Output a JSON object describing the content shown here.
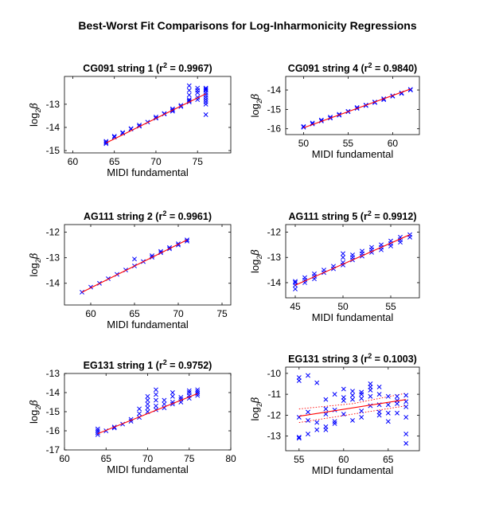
{
  "figure_title": "Best-Worst Fit Comparisons for Log-Inharmonicity Regressions",
  "colors": {
    "points": "#0000ff",
    "fit": "#ff0000",
    "ci": "#ff0000",
    "axes": "#000000"
  },
  "chart_data": [
    {
      "type": "scatter",
      "title_main": "CG091 string 1 (r",
      "title_sup": "2",
      "title_rest": " = 0.9967)",
      "xlabel": "MIDI fundamental",
      "ylabel_main": "log",
      "ylabel_sub": "2",
      "ylabel_sym": "β",
      "xlim": [
        59,
        79
      ],
      "ylim": [
        -15.1,
        -11.8
      ],
      "xticks": [
        60,
        65,
        70,
        75
      ],
      "yticks": [
        -15,
        -14,
        -13
      ],
      "marker": "x",
      "points": [
        [
          64,
          -14.65
        ],
        [
          64,
          -14.6
        ],
        [
          64,
          -14.7
        ],
        [
          65,
          -14.42
        ],
        [
          65,
          -14.38
        ],
        [
          66,
          -14.25
        ],
        [
          66,
          -14.22
        ],
        [
          67,
          -14.07
        ],
        [
          67,
          -14.05
        ],
        [
          68,
          -13.9
        ],
        [
          68,
          -13.95
        ],
        [
          69,
          -13.77
        ],
        [
          70,
          -13.6
        ],
        [
          70,
          -13.55
        ],
        [
          71,
          -13.42
        ],
        [
          71,
          -13.4
        ],
        [
          72,
          -13.3
        ],
        [
          72,
          -13.2
        ],
        [
          72,
          -13.25
        ],
        [
          73,
          -13.05
        ],
        [
          73,
          -13.1
        ],
        [
          74,
          -12.9
        ],
        [
          74,
          -12.8
        ],
        [
          74,
          -12.85
        ],
        [
          74,
          -12.2
        ],
        [
          74,
          -12.4
        ],
        [
          74,
          -12.6
        ],
        [
          75,
          -12.7
        ],
        [
          75,
          -12.5
        ],
        [
          75,
          -12.4
        ],
        [
          75,
          -12.3
        ],
        [
          75,
          -12.8
        ],
        [
          76,
          -12.3
        ],
        [
          76,
          -12.4
        ],
        [
          76,
          -12.5
        ],
        [
          76,
          -12.6
        ],
        [
          76,
          -12.7
        ],
        [
          76,
          -12.8
        ],
        [
          76,
          -12.9
        ],
        [
          76,
          -13.0
        ],
        [
          76,
          -12.35
        ],
        [
          76,
          -13.45
        ]
      ],
      "fit": {
        "x": [
          64,
          76
        ],
        "y": [
          -14.67,
          -12.55
        ]
      }
    },
    {
      "type": "scatter",
      "title_main": "CG091 string 4 (r",
      "title_sup": "2",
      "title_rest": " = 0.9840)",
      "xlabel": "MIDI fundamental",
      "ylabel_main": "log",
      "ylabel_sub": "2",
      "ylabel_sym": "β",
      "xlim": [
        48,
        63
      ],
      "ylim": [
        -16.3,
        -13.3
      ],
      "xticks": [
        50,
        55,
        60
      ],
      "yticks": [
        -16,
        -15,
        -14
      ],
      "marker": "x",
      "points": [
        [
          50,
          -15.92
        ],
        [
          50,
          -15.88
        ],
        [
          51,
          -15.75
        ],
        [
          51,
          -15.7
        ],
        [
          52,
          -15.6
        ],
        [
          52,
          -15.55
        ],
        [
          53,
          -15.45
        ],
        [
          53,
          -15.4
        ],
        [
          54,
          -15.3
        ],
        [
          54,
          -15.25
        ],
        [
          55,
          -15.12
        ],
        [
          55,
          -15.1
        ],
        [
          56,
          -14.95
        ],
        [
          56,
          -14.9
        ],
        [
          57,
          -14.8
        ],
        [
          57,
          -14.78
        ],
        [
          58,
          -14.62
        ],
        [
          58,
          -14.65
        ],
        [
          59,
          -14.5
        ],
        [
          59,
          -14.45
        ],
        [
          60,
          -14.32
        ],
        [
          60,
          -14.3
        ],
        [
          61,
          -14.15
        ],
        [
          61,
          -14.18
        ],
        [
          62,
          -14.0
        ],
        [
          62,
          -13.97
        ]
      ],
      "fit": {
        "x": [
          50,
          62
        ],
        "y": [
          -15.95,
          -13.95
        ]
      }
    },
    {
      "type": "scatter",
      "title_main": "AG111 string 2 (r",
      "title_sup": "2",
      "title_rest": " = 0.9961)",
      "xlabel": "MIDI fundamental",
      "ylabel_main": "log",
      "ylabel_sub": "2",
      "ylabel_sym": "β",
      "xlim": [
        57,
        76
      ],
      "ylim": [
        -14.85,
        -11.7
      ],
      "xticks": [
        60,
        65,
        70,
        75
      ],
      "yticks": [
        -14,
        -13,
        -12
      ],
      "marker": "x",
      "points": [
        [
          59,
          -14.35
        ],
        [
          60,
          -14.15
        ],
        [
          61,
          -14.0
        ],
        [
          62,
          -13.82
        ],
        [
          63,
          -13.65
        ],
        [
          64,
          -13.48
        ],
        [
          65,
          -13.32
        ],
        [
          65,
          -13.05
        ],
        [
          66,
          -13.15
        ],
        [
          67,
          -12.98
        ],
        [
          67,
          -12.92
        ],
        [
          68,
          -12.8
        ],
        [
          68,
          -12.75
        ],
        [
          69,
          -12.65
        ],
        [
          69,
          -12.6
        ],
        [
          70,
          -12.5
        ],
        [
          70,
          -12.45
        ],
        [
          71,
          -12.35
        ],
        [
          71,
          -12.3
        ]
      ],
      "fit": {
        "x": [
          59,
          71
        ],
        "y": [
          -14.35,
          -12.3
        ]
      }
    },
    {
      "type": "scatter",
      "title_main": "AG111 string 5 (r",
      "title_sup": "2",
      "title_rest": " = 0.9912)",
      "xlabel": "MIDI fundamental",
      "ylabel_main": "log",
      "ylabel_sub": "2",
      "ylabel_sym": "β",
      "xlim": [
        44,
        58
      ],
      "ylim": [
        -14.6,
        -11.7
      ],
      "xticks": [
        45,
        50,
        55
      ],
      "yticks": [
        -14,
        -13,
        -12
      ],
      "marker": "x",
      "points": [
        [
          45,
          -14.25
        ],
        [
          45,
          -14.1
        ],
        [
          45,
          -14.0
        ],
        [
          45,
          -13.95
        ],
        [
          46,
          -14.0
        ],
        [
          46,
          -13.9
        ],
        [
          46,
          -13.8
        ],
        [
          47,
          -13.85
        ],
        [
          47,
          -13.75
        ],
        [
          47,
          -13.65
        ],
        [
          48,
          -13.6
        ],
        [
          48,
          -13.5
        ],
        [
          49,
          -13.45
        ],
        [
          49,
          -13.35
        ],
        [
          50,
          -13.3
        ],
        [
          50,
          -13.2
        ],
        [
          50,
          -13.0
        ],
        [
          50,
          -12.85
        ],
        [
          51,
          -13.1
        ],
        [
          51,
          -13.0
        ],
        [
          51,
          -12.9
        ],
        [
          52,
          -12.95
        ],
        [
          52,
          -12.85
        ],
        [
          52,
          -12.75
        ],
        [
          53,
          -12.8
        ],
        [
          53,
          -12.7
        ],
        [
          53,
          -12.6
        ],
        [
          54,
          -12.7
        ],
        [
          54,
          -12.6
        ],
        [
          54,
          -12.5
        ],
        [
          55,
          -12.55
        ],
        [
          55,
          -12.45
        ],
        [
          55,
          -12.35
        ],
        [
          56,
          -12.4
        ],
        [
          56,
          -12.3
        ],
        [
          56,
          -12.2
        ],
        [
          57,
          -12.2
        ],
        [
          57,
          -12.1
        ]
      ],
      "fit": {
        "x": [
          45,
          57
        ],
        "y": [
          -14.1,
          -12.1
        ]
      }
    },
    {
      "type": "scatter",
      "title_main": "EG131 string 1 (r",
      "title_sup": "2",
      "title_rest": " = 0.9752)",
      "xlabel": "MIDI fundamental",
      "ylabel_main": "log",
      "ylabel_sub": "2",
      "ylabel_sym": "β",
      "xlim": [
        60,
        80
      ],
      "ylim": [
        -17,
        -13
      ],
      "xticks": [
        60,
        65,
        70,
        75,
        80
      ],
      "yticks": [
        -17,
        -16,
        -15,
        -14,
        -13
      ],
      "marker": "x",
      "points": [
        [
          64,
          -16.2
        ],
        [
          64,
          -16.1
        ],
        [
          64,
          -16.0
        ],
        [
          64,
          -15.9
        ],
        [
          65,
          -16.0
        ],
        [
          66,
          -15.85
        ],
        [
          66,
          -15.8
        ],
        [
          67,
          -15.65
        ],
        [
          68,
          -15.5
        ],
        [
          68,
          -15.4
        ],
        [
          69,
          -15.3
        ],
        [
          69,
          -15.1
        ],
        [
          69,
          -14.85
        ],
        [
          70,
          -15.0
        ],
        [
          70,
          -14.8
        ],
        [
          70,
          -14.6
        ],
        [
          70,
          -14.4
        ],
        [
          70,
          -14.2
        ],
        [
          71,
          -14.9
        ],
        [
          71,
          -14.7
        ],
        [
          71,
          -14.4
        ],
        [
          71,
          -14.1
        ],
        [
          71,
          -13.85
        ],
        [
          72,
          -14.8
        ],
        [
          72,
          -14.6
        ],
        [
          72,
          -14.4
        ],
        [
          73,
          -14.6
        ],
        [
          73,
          -14.5
        ],
        [
          73,
          -14.2
        ],
        [
          73,
          -14.0
        ],
        [
          74,
          -14.5
        ],
        [
          74,
          -14.35
        ],
        [
          74,
          -14.25
        ],
        [
          75,
          -14.3
        ],
        [
          75,
          -14.15
        ],
        [
          75,
          -14.0
        ],
        [
          75,
          -13.9
        ],
        [
          76,
          -14.15
        ],
        [
          76,
          -14.05
        ],
        [
          76,
          -13.95
        ],
        [
          76,
          -13.85
        ]
      ],
      "fit": {
        "x": [
          64,
          76
        ],
        "y": [
          -16.15,
          -14.05
        ]
      }
    },
    {
      "type": "scatter",
      "title_main": "EG131 string 3 (r",
      "title_sup": "2",
      "title_rest": " = 0.1003)",
      "xlabel": "MIDI fundamental",
      "ylabel_main": "log",
      "ylabel_sub": "2",
      "ylabel_sym": "β",
      "xlim": [
        53.5,
        68.5
      ],
      "ylim": [
        -13.7,
        -9.7
      ],
      "xticks": [
        55,
        60,
        65
      ],
      "yticks": [
        -13,
        -12,
        -11,
        -10
      ],
      "marker": "x",
      "points": [
        [
          55,
          -10.2
        ],
        [
          55,
          -10.35
        ],
        [
          55,
          -12.1
        ],
        [
          55,
          -13.05
        ],
        [
          55,
          -13.1
        ],
        [
          56,
          -10.1
        ],
        [
          56,
          -11.85
        ],
        [
          56,
          -12.25
        ],
        [
          56,
          -12.9
        ],
        [
          57,
          -10.45
        ],
        [
          57,
          -12.35
        ],
        [
          57,
          -12.7
        ],
        [
          58,
          -11.25
        ],
        [
          58,
          -11.7
        ],
        [
          58,
          -11.95
        ],
        [
          58,
          -12.55
        ],
        [
          58,
          -12.7
        ],
        [
          59,
          -11.0
        ],
        [
          59,
          -11.75
        ],
        [
          59,
          -12.3
        ],
        [
          59,
          -12.4
        ],
        [
          60,
          -10.75
        ],
        [
          60,
          -11.15
        ],
        [
          60,
          -11.3
        ],
        [
          60,
          -11.95
        ],
        [
          61,
          -10.85
        ],
        [
          61,
          -11.05
        ],
        [
          61,
          -11.25
        ],
        [
          61,
          -12.25
        ],
        [
          62,
          -10.9
        ],
        [
          62,
          -11.0
        ],
        [
          62,
          -11.2
        ],
        [
          62,
          -11.8
        ],
        [
          62,
          -12.1
        ],
        [
          63,
          -10.5
        ],
        [
          63,
          -10.65
        ],
        [
          63,
          -10.8
        ],
        [
          63,
          -11.1
        ],
        [
          63,
          -11.55
        ],
        [
          64,
          -10.65
        ],
        [
          64,
          -11.0
        ],
        [
          64,
          -11.5
        ],
        [
          64,
          -11.85
        ],
        [
          64,
          -12.0
        ],
        [
          65,
          -11.1
        ],
        [
          65,
          -11.5
        ],
        [
          65,
          -11.9
        ],
        [
          65,
          -12.3
        ],
        [
          66,
          -11.1
        ],
        [
          66,
          -11.3
        ],
        [
          66,
          -11.45
        ],
        [
          66,
          -11.9
        ],
        [
          67,
          -11.05
        ],
        [
          67,
          -11.35
        ],
        [
          67,
          -11.6
        ],
        [
          67,
          -12.1
        ],
        [
          67,
          -12.9
        ],
        [
          67,
          -13.35
        ]
      ],
      "fit": {
        "x": [
          55,
          67
        ],
        "y": [
          -12.05,
          -11.25
        ]
      },
      "ci": {
        "x": [
          55,
          61,
          67
        ],
        "upper": [
          -11.7,
          -11.45,
          -10.95
        ],
        "lower": [
          -12.35,
          -11.95,
          -11.55
        ]
      }
    }
  ]
}
